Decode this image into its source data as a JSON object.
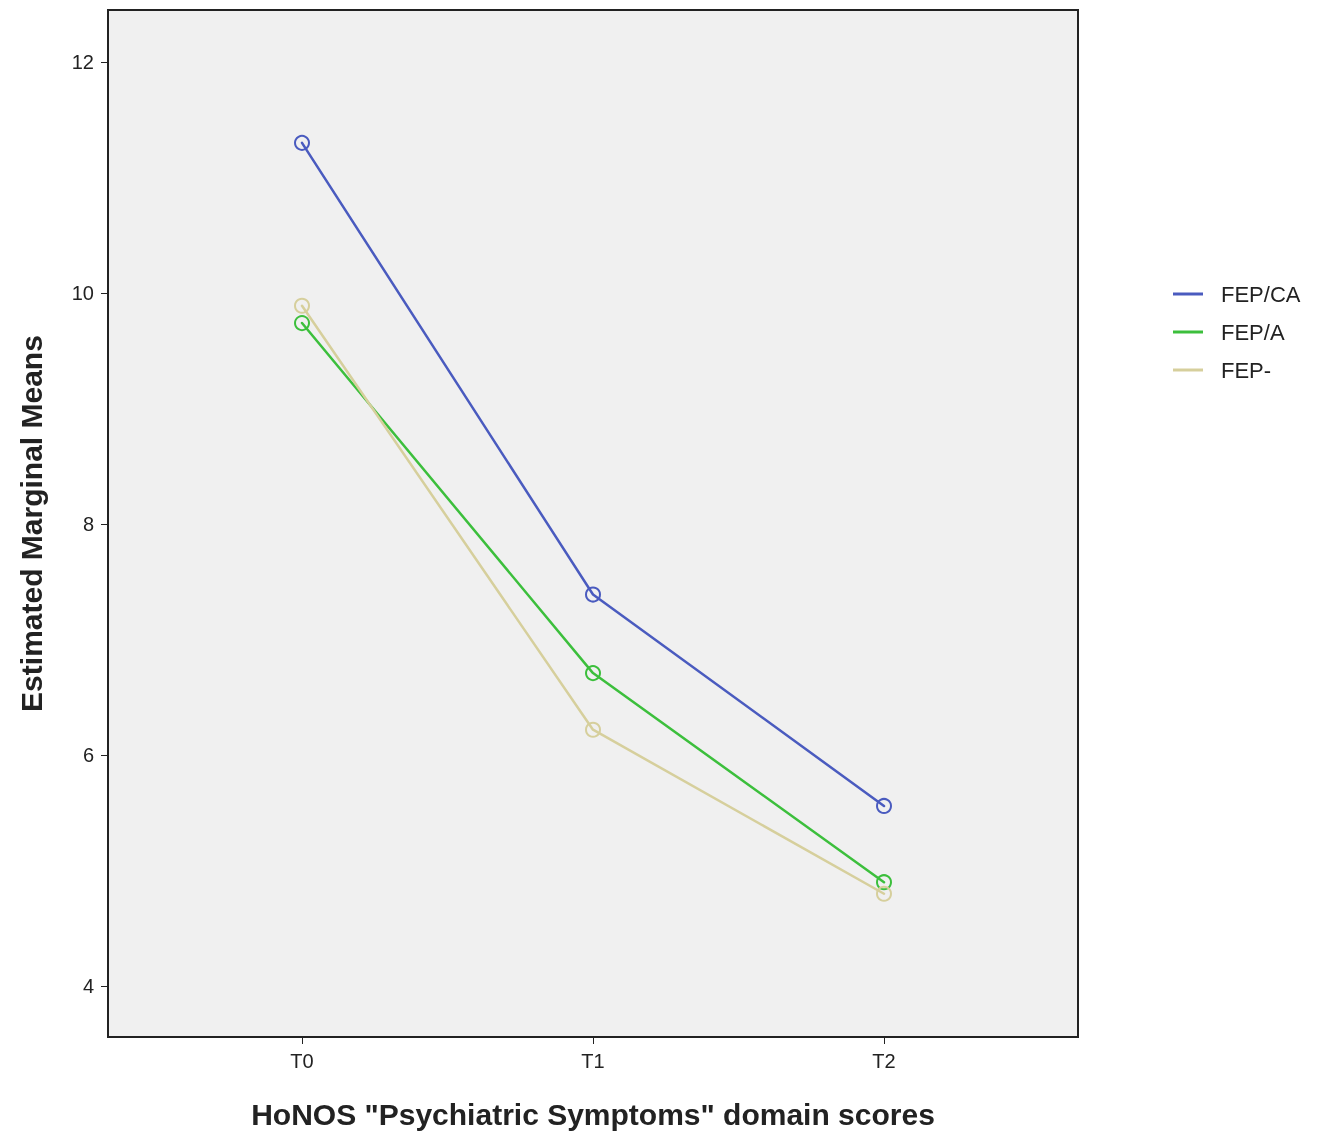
{
  "chart_data": {
    "type": "line",
    "xlabel": "HoNOS \"Psychiatric Symptoms\" domain scores",
    "ylabel": "Estimated Marginal Means",
    "categories": [
      "T0",
      "T1",
      "T2"
    ],
    "series": [
      {
        "name": "FEP/CA",
        "color": "#4a5bbf",
        "values": [
          11.3,
          7.39,
          5.56
        ]
      },
      {
        "name": "FEP/A",
        "color": "#3cbf3c",
        "values": [
          9.74,
          6.71,
          4.9
        ]
      },
      {
        "name": "FEP-",
        "color": "#d6cf9c",
        "values": [
          9.89,
          6.22,
          4.8
        ]
      }
    ],
    "ylim": [
      3.56,
      12.45
    ],
    "yticks": [
      4,
      6,
      8,
      10,
      12
    ],
    "grid": false,
    "legend": "right",
    "marker": "circle",
    "line_style": "solid"
  }
}
